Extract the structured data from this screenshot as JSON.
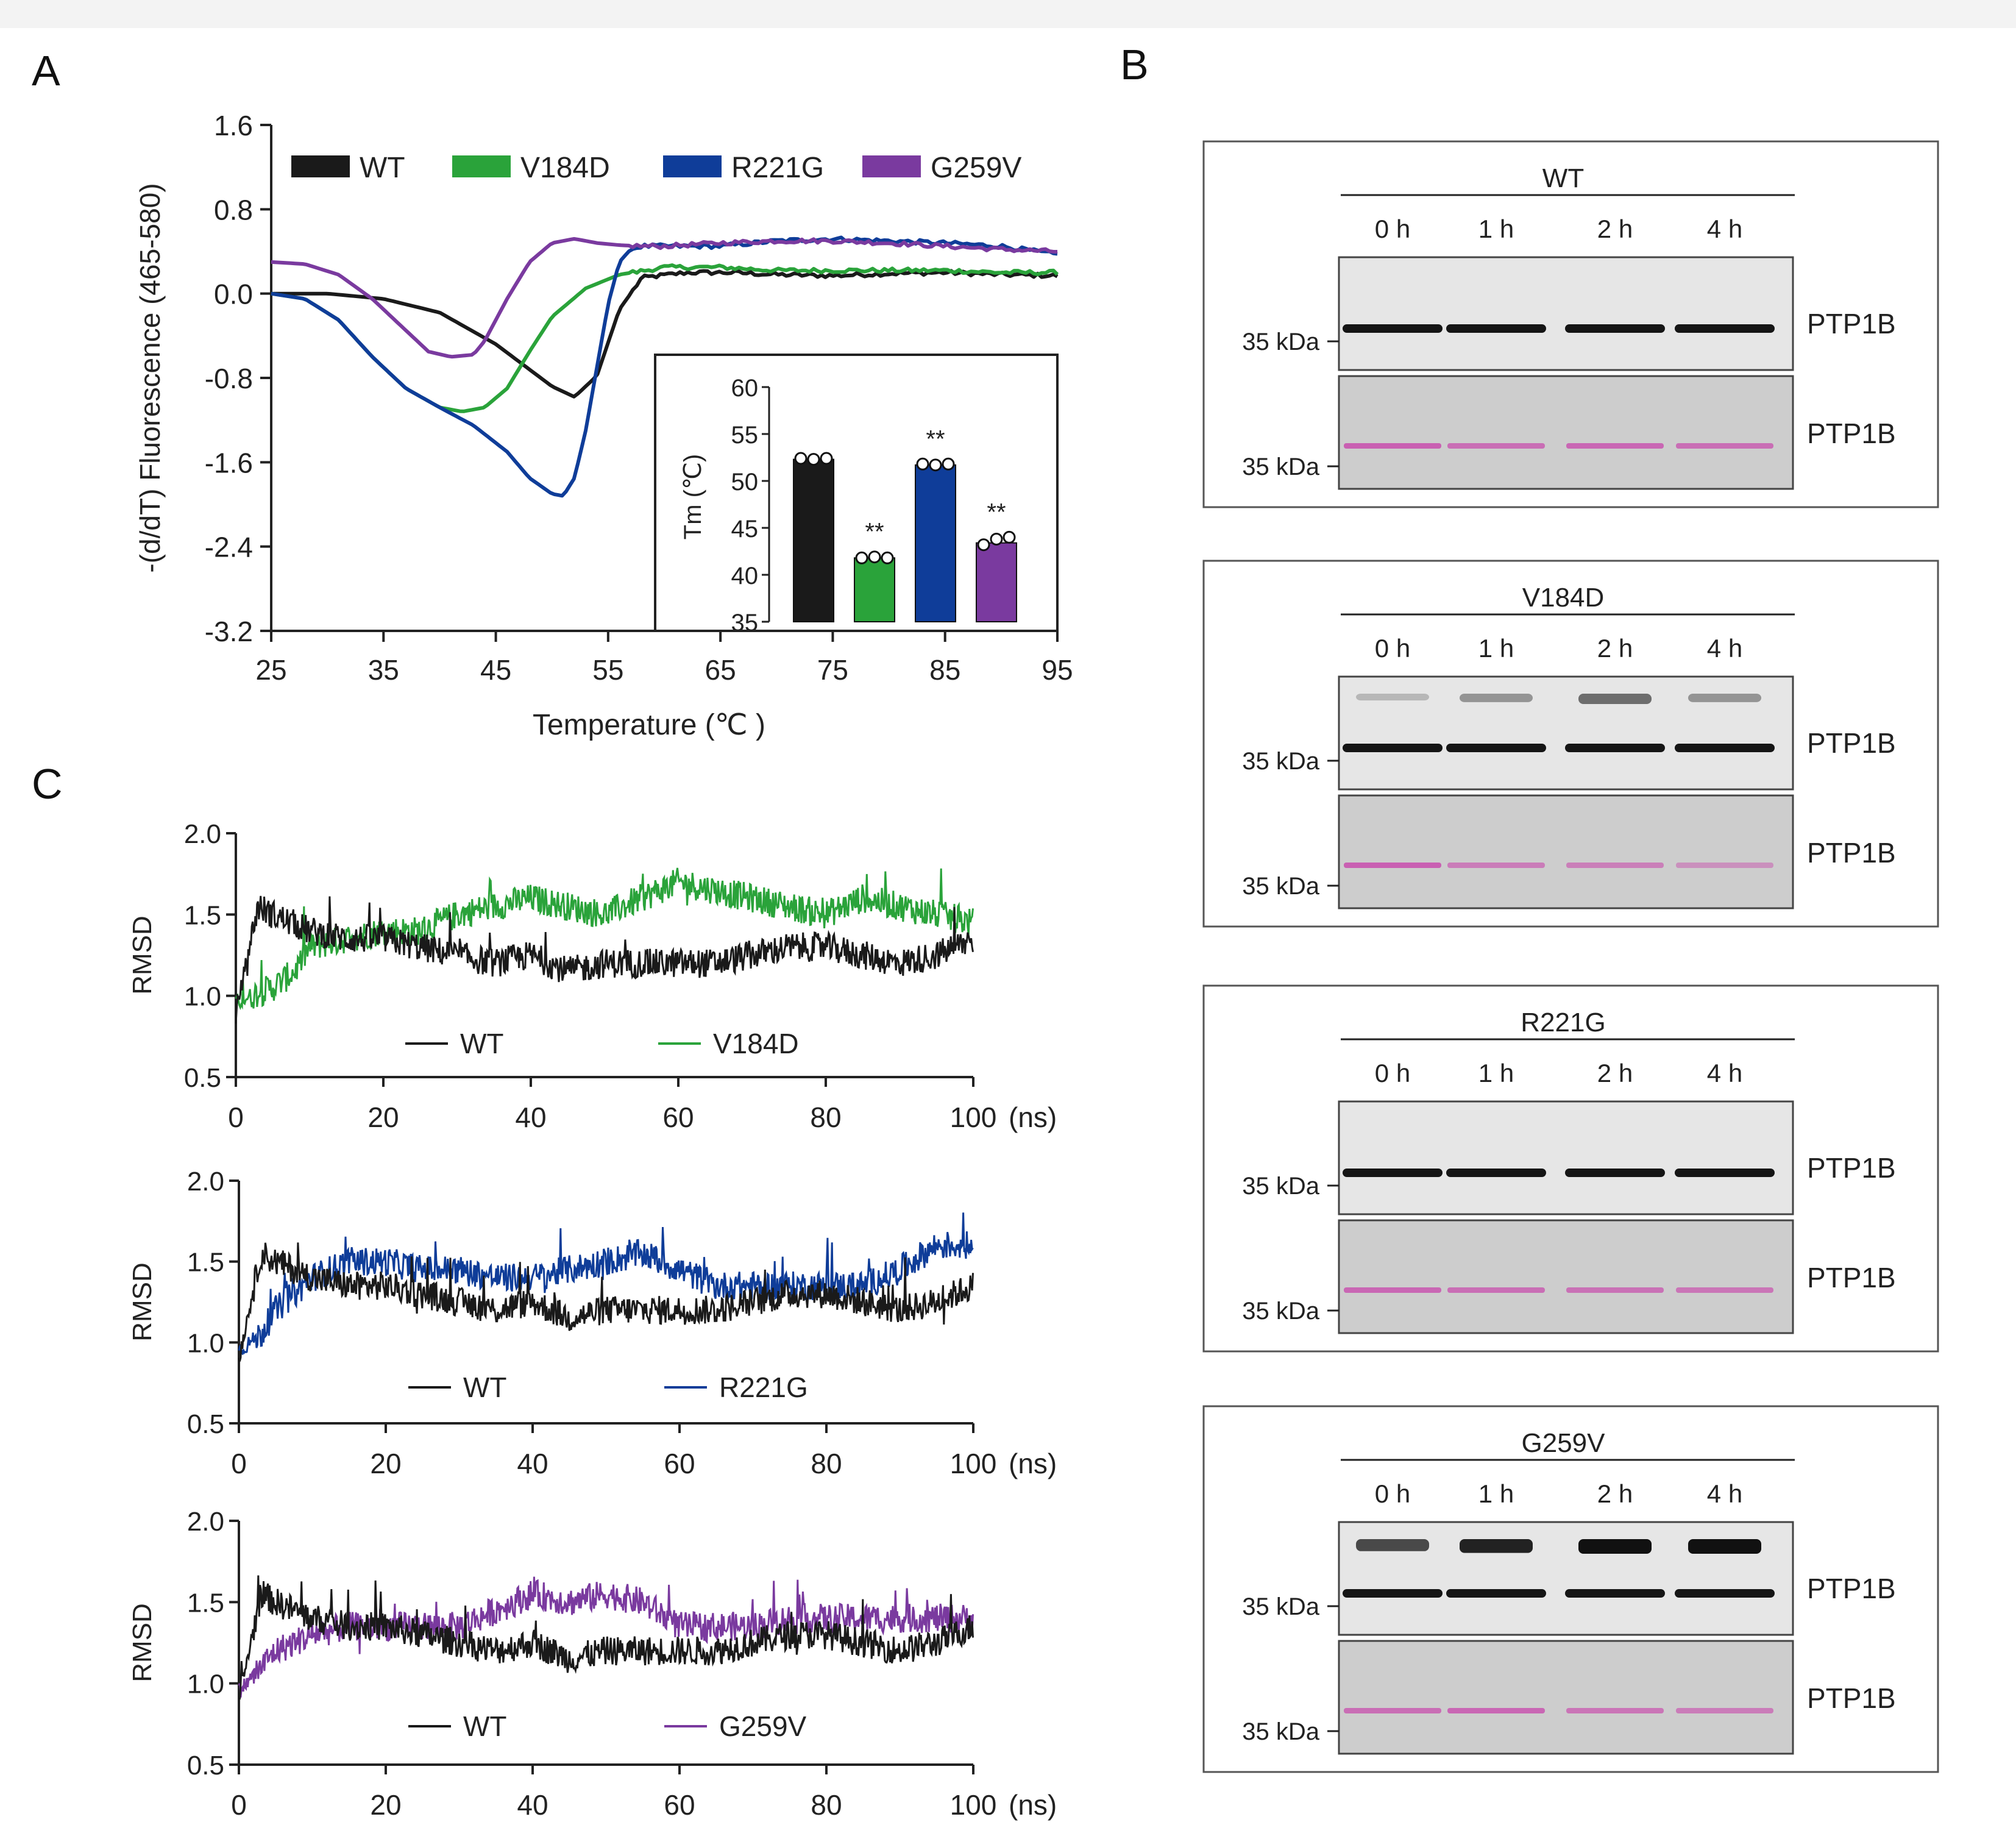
{
  "panels": {
    "a": "A",
    "b": "B",
    "c": "C"
  },
  "colors": {
    "wt": "#1a1a1a",
    "v184d": "#2aa33a",
    "r221g": "#0f3d99",
    "g259v": "#7a3a9f",
    "stain": "#c85ab0",
    "membrane": "#e6e6e6",
    "ponceau_bg": "#cdcdcd"
  },
  "chart_data": [
    {
      "id": "dsf",
      "type": "line",
      "ylabel": "-(d/dT) Fluorescence (465-580)",
      "xlabel": "Temperature (℃ )",
      "xlim": [
        25,
        95
      ],
      "ylim": [
        -3.2,
        1.6
      ],
      "xticks": [
        "25",
        "35",
        "45",
        "55",
        "65",
        "75",
        "85",
        "95"
      ],
      "yticks": [
        "1.6",
        "0.8",
        "0.0",
        "-0.8",
        "-1.6",
        "-2.4",
        "-3.2"
      ],
      "legend": [
        "WT",
        "V184D",
        "R221G",
        "G259V"
      ],
      "series": [
        {
          "name": "WT",
          "x": [
            25,
            30,
            35,
            40,
            45,
            48,
            50,
            52,
            54,
            56,
            58,
            62,
            66,
            70,
            75,
            80,
            85,
            90,
            95
          ],
          "y": [
            0,
            0,
            -0.05,
            -0.18,
            -0.48,
            -0.72,
            -0.88,
            -0.98,
            -0.78,
            -0.15,
            0.15,
            0.2,
            0.2,
            0.18,
            0.17,
            0.19,
            0.2,
            0.18,
            0.17
          ]
        },
        {
          "name": "V184D",
          "x": [
            25,
            28,
            31,
            34,
            37,
            40,
            42,
            44,
            46,
            48,
            50,
            53,
            56,
            60,
            65,
            70,
            75,
            80,
            85,
            90,
            95
          ],
          "y": [
            0,
            -0.05,
            -0.25,
            -0.6,
            -0.9,
            -1.08,
            -1.12,
            -1.08,
            -0.9,
            -0.55,
            -0.22,
            0.05,
            0.18,
            0.25,
            0.25,
            0.22,
            0.22,
            0.22,
            0.22,
            0.2,
            0.2
          ]
        },
        {
          "name": "R221G",
          "x": [
            25,
            28,
            31,
            34,
            37,
            40,
            43,
            46,
            48,
            50,
            51,
            52,
            53,
            54,
            55,
            56,
            57,
            58,
            60,
            65,
            70,
            75,
            80,
            85,
            90,
            95
          ],
          "y": [
            0,
            -0.05,
            -0.25,
            -0.6,
            -0.9,
            -1.08,
            -1.25,
            -1.5,
            -1.75,
            -1.9,
            -1.92,
            -1.75,
            -1.3,
            -0.7,
            -0.1,
            0.3,
            0.42,
            0.45,
            0.45,
            0.45,
            0.5,
            0.52,
            0.5,
            0.48,
            0.45,
            0.37
          ]
        },
        {
          "name": "G259V",
          "x": [
            25,
            28,
            31,
            34,
            37,
            39,
            41,
            43,
            44,
            46,
            48,
            50,
            52,
            54,
            56,
            58,
            60,
            65,
            70,
            75,
            80,
            85,
            90,
            95
          ],
          "y": [
            0.3,
            0.28,
            0.18,
            -0.05,
            -0.35,
            -0.55,
            -0.6,
            -0.58,
            -0.45,
            -0.05,
            0.3,
            0.48,
            0.52,
            0.48,
            0.46,
            0.45,
            0.45,
            0.48,
            0.5,
            0.5,
            0.48,
            0.45,
            0.42,
            0.4
          ]
        }
      ],
      "inset": {
        "type": "bar",
        "ylabel": "Tm (℃)",
        "ylim": [
          35,
          60
        ],
        "yticks": [
          "60",
          "55",
          "50",
          "45",
          "40",
          "35"
        ],
        "categories": [
          "WT",
          "V184D",
          "R221G",
          "G259V"
        ],
        "values": [
          52.3,
          41.8,
          51.7,
          43.4
        ],
        "points": [
          [
            52.4,
            52.3,
            52.4
          ],
          [
            41.8,
            41.9,
            41.8
          ],
          [
            51.8,
            51.7,
            51.8
          ],
          [
            43.2,
            43.8,
            44.0
          ]
        ],
        "significance": [
          "",
          "**",
          "**",
          "**"
        ]
      }
    },
    {
      "id": "rmsd1",
      "type": "line",
      "ylabel": "RMSD",
      "xlim": [
        0,
        100
      ],
      "ylim": [
        0.5,
        2.0
      ],
      "xticks": [
        "0",
        "20",
        "40",
        "60",
        "80",
        "100"
      ],
      "xunit": "(ns)",
      "yticks": [
        "2.0",
        "1.5",
        "1.0",
        "0.5"
      ],
      "legend": [
        "WT",
        "V184D"
      ],
      "series": [
        {
          "name": "WT",
          "x": [
            0,
            3,
            5,
            10,
            15,
            20,
            25,
            30,
            35,
            40,
            45,
            50,
            55,
            60,
            65,
            70,
            75,
            80,
            85,
            90,
            95,
            100
          ],
          "y": [
            0.9,
            1.55,
            1.5,
            1.4,
            1.35,
            1.35,
            1.3,
            1.25,
            1.2,
            1.25,
            1.15,
            1.2,
            1.2,
            1.2,
            1.2,
            1.25,
            1.3,
            1.3,
            1.25,
            1.2,
            1.25,
            1.35
          ]
        },
        {
          "name": "V184D",
          "x": [
            0,
            2,
            5,
            8,
            10,
            15,
            20,
            25,
            30,
            35,
            40,
            45,
            50,
            55,
            60,
            65,
            70,
            75,
            80,
            85,
            90,
            95,
            100
          ],
          "y": [
            0.95,
            1.0,
            1.05,
            1.15,
            1.3,
            1.35,
            1.4,
            1.4,
            1.5,
            1.55,
            1.6,
            1.55,
            1.5,
            1.6,
            1.7,
            1.65,
            1.6,
            1.55,
            1.5,
            1.6,
            1.55,
            1.5,
            1.45
          ]
        }
      ]
    },
    {
      "id": "rmsd2",
      "type": "line",
      "ylabel": "RMSD",
      "xlim": [
        0,
        100
      ],
      "ylim": [
        0.5,
        2.0
      ],
      "xticks": [
        "0",
        "20",
        "40",
        "60",
        "80",
        "100"
      ],
      "xunit": "(ns)",
      "yticks": [
        "2.0",
        "1.5",
        "1.0",
        "0.5"
      ],
      "legend": [
        "WT",
        "R221G"
      ],
      "series": [
        {
          "name": "WT",
          "x": [
            0,
            3,
            5,
            10,
            15,
            20,
            25,
            30,
            35,
            40,
            45,
            50,
            55,
            60,
            65,
            70,
            75,
            80,
            85,
            90,
            95,
            100
          ],
          "y": [
            0.9,
            1.55,
            1.5,
            1.4,
            1.35,
            1.35,
            1.3,
            1.25,
            1.2,
            1.25,
            1.15,
            1.2,
            1.2,
            1.2,
            1.2,
            1.25,
            1.3,
            1.3,
            1.25,
            1.2,
            1.25,
            1.35
          ]
        },
        {
          "name": "R221G",
          "x": [
            0,
            3,
            5,
            10,
            15,
            20,
            25,
            30,
            35,
            40,
            45,
            50,
            55,
            60,
            65,
            70,
            75,
            80,
            85,
            90,
            95,
            100
          ],
          "y": [
            0.95,
            1.05,
            1.2,
            1.4,
            1.5,
            1.5,
            1.45,
            1.45,
            1.4,
            1.4,
            1.45,
            1.5,
            1.55,
            1.45,
            1.35,
            1.35,
            1.35,
            1.35,
            1.35,
            1.45,
            1.6,
            1.6
          ]
        }
      ]
    },
    {
      "id": "rmsd3",
      "type": "line",
      "ylabel": "RMSD",
      "xlim": [
        0,
        100
      ],
      "ylim": [
        0.5,
        2.0
      ],
      "xticks": [
        "0",
        "20",
        "40",
        "60",
        "80",
        "100"
      ],
      "xunit": "(ns)",
      "yticks": [
        "2.0",
        "1.5",
        "1.0",
        "0.5"
      ],
      "legend": [
        "WT",
        "G259V"
      ],
      "series": [
        {
          "name": "WT",
          "x": [
            0,
            3,
            5,
            10,
            15,
            20,
            25,
            30,
            35,
            40,
            45,
            50,
            55,
            60,
            65,
            70,
            75,
            80,
            85,
            90,
            95,
            100
          ],
          "y": [
            0.9,
            1.55,
            1.5,
            1.4,
            1.35,
            1.35,
            1.3,
            1.25,
            1.2,
            1.25,
            1.15,
            1.2,
            1.2,
            1.2,
            1.2,
            1.25,
            1.3,
            1.3,
            1.25,
            1.2,
            1.25,
            1.35
          ]
        },
        {
          "name": "G259V",
          "x": [
            0,
            3,
            5,
            10,
            15,
            20,
            25,
            30,
            35,
            40,
            45,
            50,
            55,
            60,
            65,
            70,
            75,
            80,
            85,
            90,
            95,
            100
          ],
          "y": [
            0.95,
            1.1,
            1.2,
            1.3,
            1.35,
            1.35,
            1.35,
            1.35,
            1.45,
            1.55,
            1.5,
            1.55,
            1.5,
            1.35,
            1.35,
            1.35,
            1.4,
            1.4,
            1.4,
            1.4,
            1.4,
            1.4
          ]
        }
      ]
    }
  ],
  "blots": {
    "times": [
      "0 h",
      "1 h",
      "2 h",
      "4 h"
    ],
    "marker": "35  kDa",
    "protein": "PTP1B",
    "groups": [
      {
        "title": "WT",
        "upper": {
          "extra": [
            0,
            0,
            0,
            0
          ]
        },
        "lower": [
          1,
          0.8,
          0.9,
          0.8
        ]
      },
      {
        "title": "V184D",
        "upper": {
          "extra": [
            0.08,
            0.28,
            0.5,
            0.28
          ]
        },
        "lower": [
          1,
          0.6,
          0.55,
          0.3
        ]
      },
      {
        "title": "R221G",
        "upper": {
          "extra": [
            0,
            0,
            0,
            0
          ]
        },
        "lower": [
          0.9,
          0.8,
          0.75,
          0.7
        ]
      },
      {
        "title": "G259V",
        "upper": {
          "extra": [
            0.7,
            0.9,
            1,
            1
          ]
        },
        "lower": [
          0.8,
          0.9,
          0.7,
          0.6
        ]
      }
    ]
  }
}
